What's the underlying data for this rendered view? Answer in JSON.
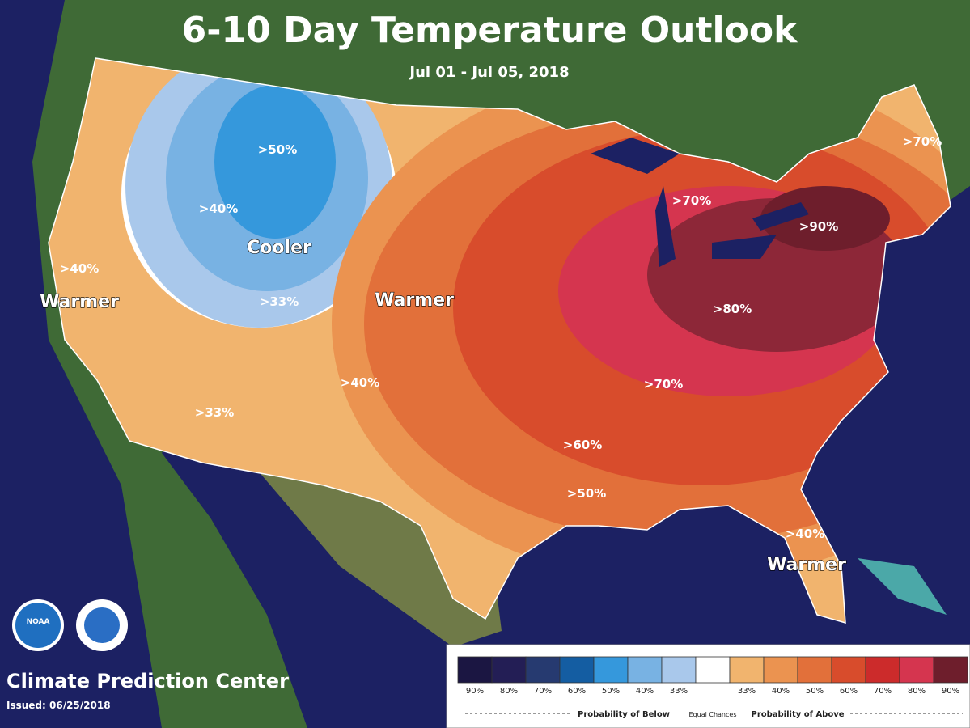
{
  "header": {
    "title": "6-10 Day Temperature Outlook",
    "subtitle": "Jul 01 - Jul 05, 2018"
  },
  "labels": [
    ">50%",
    ">40%",
    "Cooler",
    ">33%",
    "Warmer",
    ">40%",
    "Warmer",
    ">40%",
    ">33%",
    ">70%",
    ">70%",
    ">90%",
    ">80%",
    ">70%",
    ">60%",
    ">50%",
    ">40%",
    "Warmer"
  ],
  "footer": {
    "logo": "NOAA",
    "center": "Climate Prediction Center",
    "issued": "Issued: 06/25/2018"
  },
  "legend": {
    "items": [
      {
        "label": "90%",
        "color": "#1b1642"
      },
      {
        "label": "80%",
        "color": "#231e55"
      },
      {
        "label": "70%",
        "color": "#263a70"
      },
      {
        "label": "60%",
        "color": "#145da2"
      },
      {
        "label": "50%",
        "color": "#3598dc"
      },
      {
        "label": "40%",
        "color": "#78b2e3"
      },
      {
        "label": "33%",
        "color": "#a9c8eb"
      },
      {
        "color": "#ffffff"
      },
      {
        "label": "33%",
        "color": "#f1b46e"
      },
      {
        "label": "40%",
        "color": "#eb9350"
      },
      {
        "label": "50%",
        "color": "#e2703a"
      },
      {
        "label": "60%",
        "color": "#d84c2c"
      },
      {
        "label": "70%",
        "color": "#cc2b2b"
      },
      {
        "label": "80%",
        "color": "#d5354f"
      },
      {
        "label": "90%",
        "color": "#6e1e2c"
      }
    ],
    "below": "Probability of Below",
    "equal": "Equal Chances",
    "above": "Probability of Above"
  }
}
